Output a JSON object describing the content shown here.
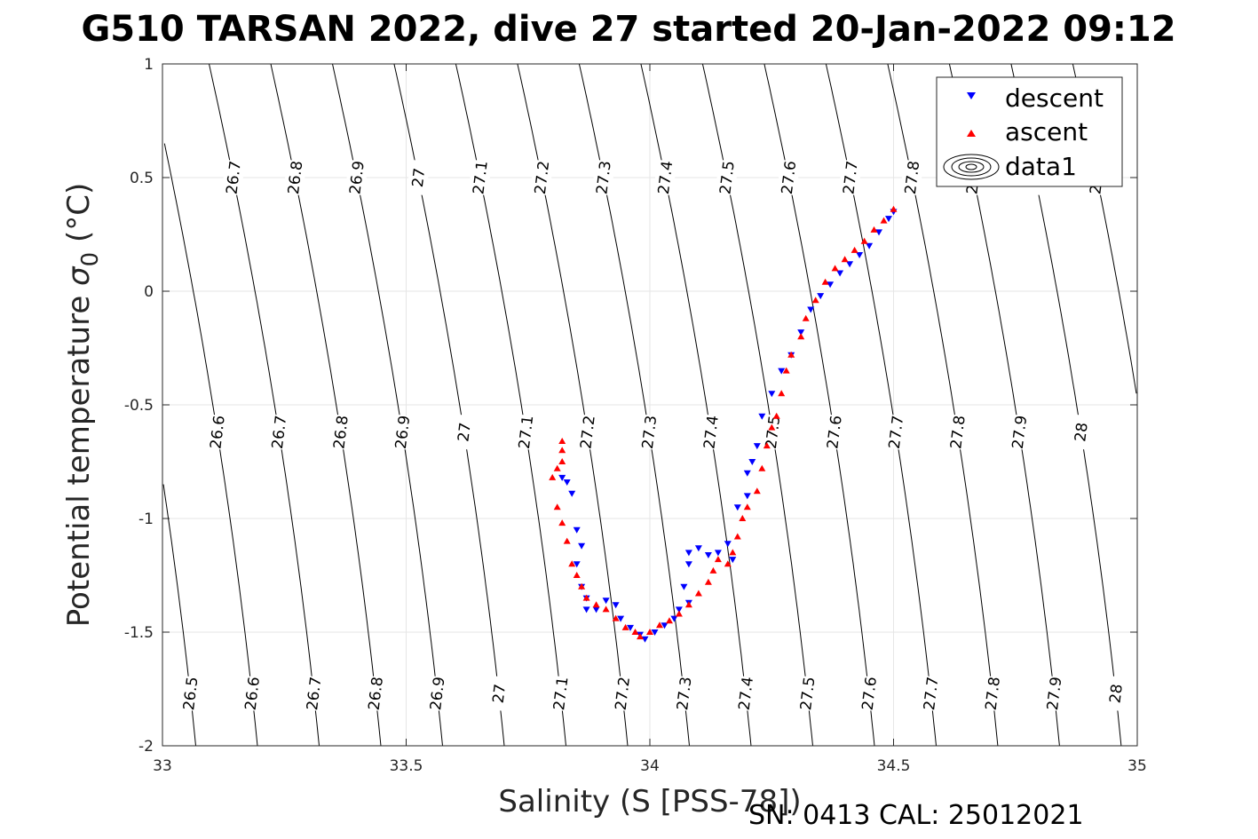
{
  "chart_data": {
    "type": "scatter",
    "title": "G510 TARSAN 2022, dive 27 started 20-Jan-2022 09:12",
    "xlabel": "Salinity (S [PSS-78])",
    "ylabel": "Potential temperature",
    "ylabel_symbol": "σ",
    "ylabel_subscript": "0",
    "ylabel_unit": "(°C)",
    "xlim": [
      33,
      35
    ],
    "ylim": [
      -2,
      1
    ],
    "xticks": [
      33,
      33.5,
      34,
      34.5,
      35
    ],
    "xtick_labels": [
      "33",
      "33.5",
      "34",
      "34.5",
      "35"
    ],
    "yticks": [
      -2,
      -1.5,
      -1,
      -0.5,
      0,
      0.5,
      1
    ],
    "ytick_labels": [
      "-2",
      "-1.5",
      "-1",
      "-0.5",
      "0",
      "0.5",
      "1"
    ],
    "grid": true,
    "legend_position": "top-right",
    "legend": [
      "descent",
      "ascent",
      "data1"
    ],
    "contour_levels": [
      "26.5",
      "26.6",
      "26.7",
      "26.8",
      "26.9",
      "27",
      "27.1",
      "27.2",
      "27.3",
      "27.4",
      "27.5",
      "27.6",
      "27.7",
      "27.8",
      "27.9",
      "28",
      "28.1"
    ],
    "series": [
      {
        "name": "descent",
        "marker": "triangle-down",
        "color": "#0000ff",
        "points": [
          [
            33.82,
            -0.82
          ],
          [
            33.83,
            -0.84
          ],
          [
            33.84,
            -0.89
          ],
          [
            33.85,
            -1.05
          ],
          [
            33.86,
            -1.12
          ],
          [
            33.85,
            -1.2
          ],
          [
            33.86,
            -1.3
          ],
          [
            33.87,
            -1.35
          ],
          [
            33.87,
            -1.4
          ],
          [
            33.89,
            -1.4
          ],
          [
            33.91,
            -1.36
          ],
          [
            33.93,
            -1.38
          ],
          [
            33.94,
            -1.44
          ],
          [
            33.96,
            -1.48
          ],
          [
            33.98,
            -1.51
          ],
          [
            33.99,
            -1.53
          ],
          [
            34.01,
            -1.5
          ],
          [
            34.03,
            -1.47
          ],
          [
            34.05,
            -1.44
          ],
          [
            34.06,
            -1.4
          ],
          [
            34.08,
            -1.37
          ],
          [
            34.07,
            -1.3
          ],
          [
            34.08,
            -1.2
          ],
          [
            34.08,
            -1.15
          ],
          [
            34.1,
            -1.13
          ],
          [
            34.12,
            -1.16
          ],
          [
            34.14,
            -1.15
          ],
          [
            34.16,
            -1.11
          ],
          [
            34.17,
            -1.18
          ],
          [
            34.18,
            -0.95
          ],
          [
            34.2,
            -0.9
          ],
          [
            34.2,
            -0.8
          ],
          [
            34.21,
            -0.75
          ],
          [
            34.22,
            -0.68
          ],
          [
            34.23,
            -0.55
          ],
          [
            34.25,
            -0.45
          ],
          [
            34.27,
            -0.35
          ],
          [
            34.29,
            -0.28
          ],
          [
            34.31,
            -0.18
          ],
          [
            34.33,
            -0.08
          ],
          [
            34.35,
            -0.02
          ],
          [
            34.37,
            0.03
          ],
          [
            34.39,
            0.08
          ],
          [
            34.41,
            0.12
          ],
          [
            34.43,
            0.16
          ],
          [
            34.45,
            0.2
          ],
          [
            34.47,
            0.26
          ],
          [
            34.49,
            0.32
          ],
          [
            34.5,
            0.35
          ]
        ]
      },
      {
        "name": "ascent",
        "marker": "triangle-up",
        "color": "#ff0000",
        "points": [
          [
            33.82,
            -0.66
          ],
          [
            33.82,
            -0.7
          ],
          [
            33.82,
            -0.75
          ],
          [
            33.81,
            -0.78
          ],
          [
            33.8,
            -0.82
          ],
          [
            33.81,
            -0.95
          ],
          [
            33.82,
            -1.02
          ],
          [
            33.83,
            -1.1
          ],
          [
            33.84,
            -1.2
          ],
          [
            33.85,
            -1.25
          ],
          [
            33.86,
            -1.3
          ],
          [
            33.87,
            -1.35
          ],
          [
            33.89,
            -1.38
          ],
          [
            33.91,
            -1.4
          ],
          [
            33.93,
            -1.44
          ],
          [
            33.95,
            -1.48
          ],
          [
            33.97,
            -1.5
          ],
          [
            33.98,
            -1.52
          ],
          [
            34.0,
            -1.5
          ],
          [
            34.02,
            -1.47
          ],
          [
            34.04,
            -1.45
          ],
          [
            34.06,
            -1.42
          ],
          [
            34.08,
            -1.38
          ],
          [
            34.1,
            -1.33
          ],
          [
            34.12,
            -1.28
          ],
          [
            34.13,
            -1.23
          ],
          [
            34.14,
            -1.18
          ],
          [
            34.16,
            -1.2
          ],
          [
            34.17,
            -1.15
          ],
          [
            34.18,
            -1.08
          ],
          [
            34.19,
            -1.0
          ],
          [
            34.2,
            -0.95
          ],
          [
            34.22,
            -0.88
          ],
          [
            34.23,
            -0.78
          ],
          [
            34.24,
            -0.68
          ],
          [
            34.25,
            -0.6
          ],
          [
            34.26,
            -0.55
          ],
          [
            34.27,
            -0.45
          ],
          [
            34.28,
            -0.35
          ],
          [
            34.29,
            -0.28
          ],
          [
            34.31,
            -0.2
          ],
          [
            34.32,
            -0.12
          ],
          [
            34.34,
            -0.04
          ],
          [
            34.36,
            0.04
          ],
          [
            34.38,
            0.1
          ],
          [
            34.4,
            0.14
          ],
          [
            34.42,
            0.18
          ],
          [
            34.44,
            0.22
          ],
          [
            34.46,
            0.27
          ],
          [
            34.48,
            0.31
          ],
          [
            34.5,
            0.36
          ]
        ]
      }
    ]
  },
  "footer": {
    "serial": "SN: 0413  CAL: 25012021"
  },
  "colors": {
    "descent": "#0000ff",
    "ascent": "#ff0000",
    "grid": "#e6e6e6",
    "axis": "#262626"
  }
}
